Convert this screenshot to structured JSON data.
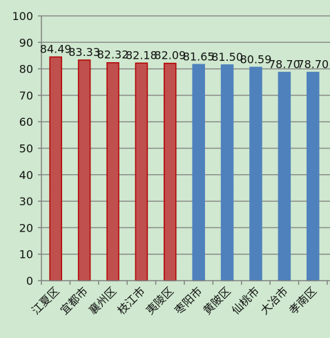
{
  "chart_data": {
    "type": "bar",
    "title": "",
    "xlabel": "",
    "ylabel": "",
    "ylim": [
      0,
      100
    ],
    "yticks": [
      0,
      10,
      20,
      30,
      40,
      50,
      60,
      70,
      80,
      90,
      100
    ],
    "grid": true,
    "categories": [
      "江夏区",
      "宜都市",
      "襄州区",
      "枝江市",
      "夷陵区",
      "枣阳市",
      "黄陂区",
      "仙桃市",
      "大冶市",
      "孝南区"
    ],
    "values": [
      84.49,
      83.33,
      82.32,
      82.18,
      82.09,
      81.65,
      81.5,
      80.59,
      78.7,
      78.7
    ],
    "value_labels": [
      "84.49",
      "83.33",
      "82.32",
      "82.18",
      "82.09",
      "81.65",
      "81.50",
      "80.59",
      "78.70",
      "78.70"
    ],
    "bar_colors": [
      "#c0504d",
      "#c0504d",
      "#c0504d",
      "#c0504d",
      "#c0504d",
      "#4f81bd",
      "#4f81bd",
      "#4f81bd",
      "#4f81bd",
      "#4f81bd"
    ],
    "bar_outline_colors": [
      "#b00000",
      "#b00000",
      "#b00000",
      "#b00000",
      "#b00000",
      "#4f81bd",
      "#4f81bd",
      "#4f81bd",
      "#4f81bd",
      "#4f81bd"
    ]
  },
  "colors": {
    "background": "#cfe8cf",
    "grid": "#8a8a8a",
    "axis": "#808080"
  }
}
